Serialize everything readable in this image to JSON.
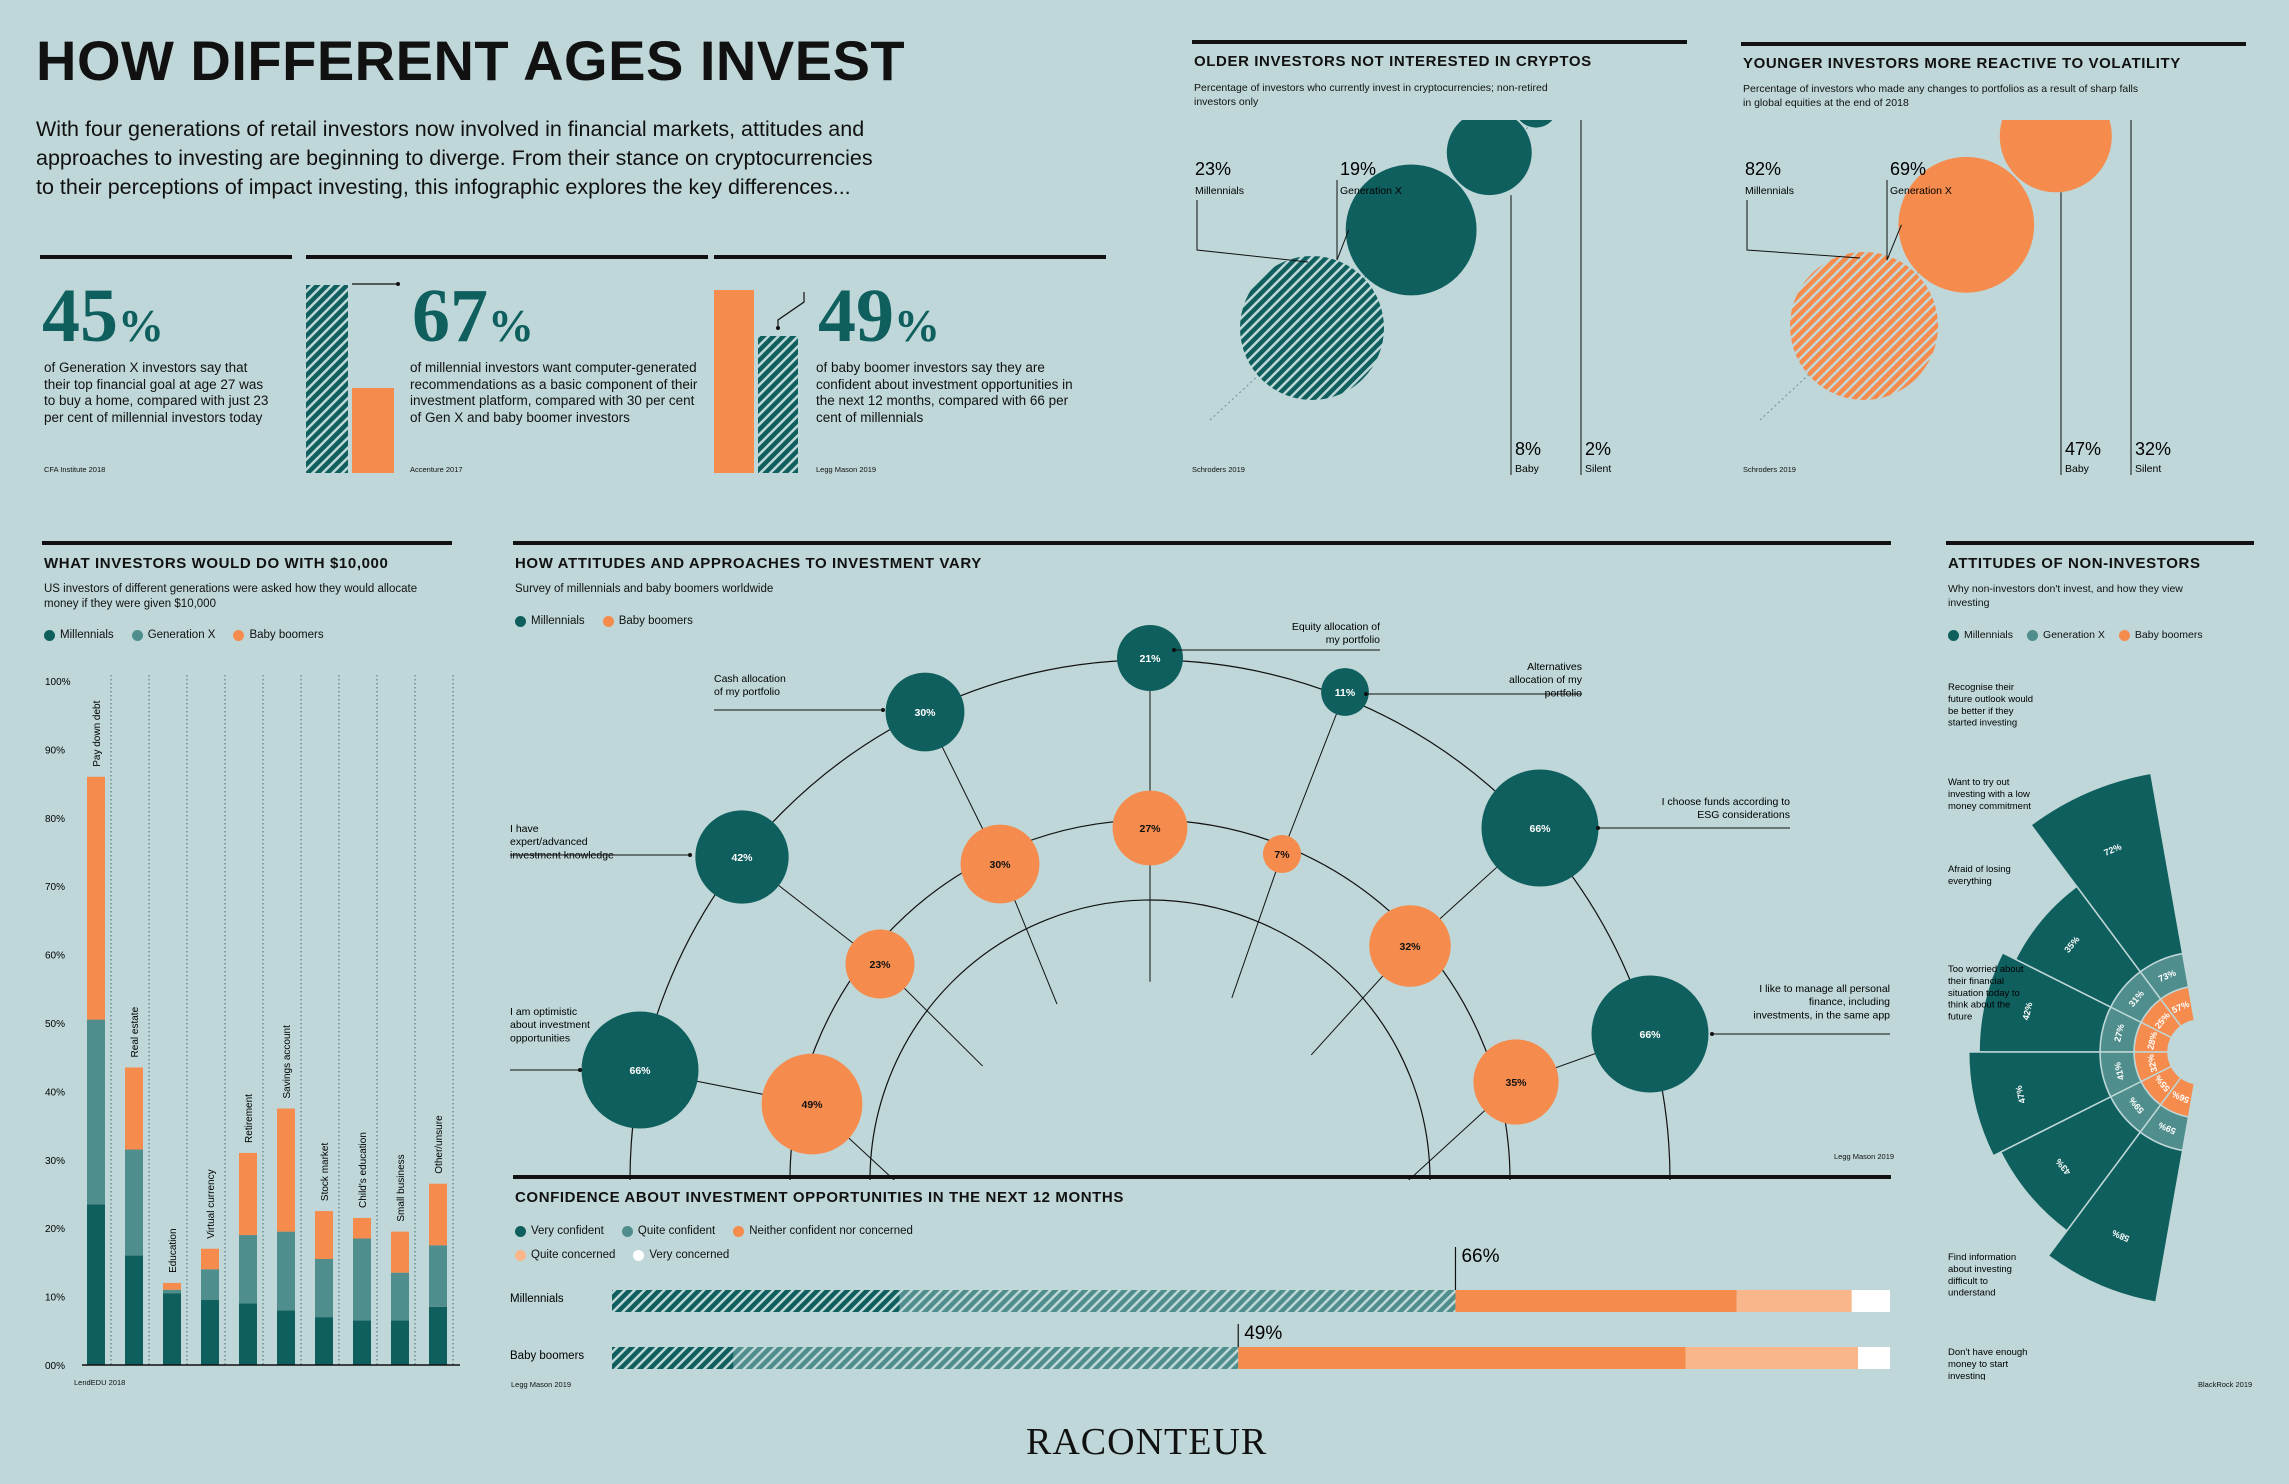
{
  "colors": {
    "dark": "#0f5f5e",
    "mid": "#4f8e8c",
    "orange": "#f58b4c",
    "light_orange": "#f9b68a",
    "white": "#ffffff",
    "bg": "#bfd7d8"
  },
  "header": {
    "title": "HOW DIFFERENT AGES INVEST",
    "intro": "With four generations of retail investors now involved in financial markets, attitudes and approaches to investing are beginning to diverge. From their stance on cryptocurrencies to their perceptions of impact investing, this infographic explores the key differences..."
  },
  "stats": [
    {
      "value": "45",
      "pct": "%",
      "text": "of Generation X investors say that their top financial goal at age 27 was to buy a home, compared with just 23 per cent of millennial investors today",
      "source": "CFA Institute 2018"
    },
    {
      "value": "67",
      "pct": "%",
      "text": "of millennial investors want computer-generated recommendations as a basic component of their investment platform, compared with 30 per cent of Gen X and baby boomer investors",
      "source": "Accenture 2017"
    },
    {
      "value": "49",
      "pct": "%",
      "text": "of baby boomer investors say they are confident about investment opportunities in the next 12 months, compared with 66 per cent of millennials",
      "source": "Legg Mason 2019"
    }
  ],
  "crypto": {
    "title": "OLDER INVESTORS NOT INTERESTED IN CRYPTOS",
    "subtitle": "Percentage of investors who currently invest in cryptocurrencies; non-retired investors only",
    "source": "Schroders 2019",
    "chart_data": {
      "type": "bubble",
      "categories": [
        "Millennials",
        "Generation X",
        "Baby boomers",
        "Silent generation"
      ],
      "values": [
        23,
        19,
        8,
        2
      ],
      "labels": [
        "23%",
        "19%",
        "8%",
        "2%"
      ]
    }
  },
  "volatility": {
    "title": "YOUNGER INVESTORS MORE REACTIVE TO VOLATILITY",
    "subtitle": "Percentage of investors who made any changes to portfolios as a result of sharp falls in global equities at the end of 2018",
    "source": "Schroders 2019",
    "chart_data": {
      "type": "bubble",
      "categories": [
        "Millennials",
        "Generation X",
        "Baby boomers",
        "Silent generation"
      ],
      "values": [
        82,
        69,
        47,
        32
      ],
      "labels": [
        "82%",
        "69%",
        "47%",
        "32%"
      ]
    }
  },
  "tenk": {
    "title": "WHAT INVESTORS WOULD DO WITH $10,000",
    "subtitle": "US investors of different generations were asked how they would allocate money if they were given $10,000",
    "legend": [
      "Millennials",
      "Generation X",
      "Baby boomers"
    ],
    "source": "LendEDU 2018",
    "yticks": [
      "100%",
      "90%",
      "80%",
      "70%",
      "60%",
      "50%",
      "40%",
      "30%",
      "20%",
      "10%",
      "00%"
    ],
    "chart_data": {
      "type": "bar",
      "stacked": true,
      "categories": [
        "Pay down debt",
        "Real estate",
        "Education",
        "Virtual currency",
        "Retirement",
        "Savings account",
        "Stock market",
        "Child's education",
        "Small business",
        "Other/unsure"
      ],
      "series": [
        {
          "name": "Millennials",
          "values": [
            23.5,
            16,
            10.5,
            9.5,
            9,
            8,
            7,
            6.5,
            6.5,
            8.5
          ]
        },
        {
          "name": "Generation X",
          "values": [
            27,
            15.5,
            0.5,
            4.5,
            10,
            11.5,
            8.5,
            12,
            7,
            9
          ]
        },
        {
          "name": "Baby boomers",
          "values": [
            35.5,
            12,
            1,
            3,
            12,
            18,
            7,
            3,
            6,
            9
          ]
        }
      ],
      "ylim": [
        0,
        100
      ]
    }
  },
  "attitudes": {
    "title": "HOW ATTITUDES AND APPROACHES TO INVESTMENT VARY",
    "subtitle": "Survey of millennials and baby boomers worldwide",
    "legend": [
      "Millennials",
      "Baby boomers"
    ],
    "source": "Legg Mason 2019",
    "chart_data": {
      "type": "bubble",
      "categories": [
        "I am optimistic about investment opportunities",
        "I have expert/advanced investment knowledge",
        "Cash allocation of my portfolio",
        "Equity allocation of my portfolio",
        "Alternatives allocation of my portfolio",
        "I choose funds according to ESG considerations",
        "I like to manage all personal finance, including investments, in the same app"
      ],
      "series": [
        {
          "name": "Millennials",
          "values": [
            66,
            42,
            30,
            21,
            11,
            66,
            66
          ],
          "labels": [
            "66%",
            "42%",
            "30%",
            "21%",
            "11%",
            "66%",
            "66%"
          ]
        },
        {
          "name": "Baby boomers",
          "values": [
            49,
            23,
            30,
            27,
            7,
            32,
            35
          ],
          "labels": [
            "49%",
            "23%",
            "30%",
            "27%",
            "7%",
            "32%",
            "35%"
          ]
        }
      ]
    }
  },
  "confidence": {
    "title": "CONFIDENCE ABOUT INVESTMENT OPPORTUNITIES IN THE NEXT 12 MONTHS",
    "legend": [
      "Very confident",
      "Quite confident",
      "Neither confident nor concerned",
      "Quite concerned",
      "Very concerned"
    ],
    "source": "Legg Mason 2019",
    "chart_data": {
      "type": "bar",
      "stacked": true,
      "orientation": "horizontal",
      "categories": [
        "Millennials",
        "Baby boomers"
      ],
      "series": [
        {
          "name": "Very confident",
          "values": [
            22.5,
            9.5
          ]
        },
        {
          "name": "Quite confident",
          "values": [
            43.5,
            39.5
          ]
        },
        {
          "name": "Neither confident nor concerned",
          "values": [
            22,
            35
          ]
        },
        {
          "name": "Quite concerned",
          "values": [
            9,
            13.5
          ]
        },
        {
          "name": "Very concerned",
          "values": [
            3,
            2.5
          ]
        }
      ],
      "callouts": [
        "66%",
        "49%"
      ]
    }
  },
  "noninv": {
    "title": "ATTITUDES OF NON-INVESTORS",
    "subtitle": "Why non-investors don't invest, and how they view investing",
    "legend": [
      "Millennials",
      "Generation X",
      "Baby boomers"
    ],
    "source": "BlackRock 2019",
    "chart_data": {
      "type": "radial-bar",
      "categories": [
        "Recognise their future outlook would be better if they started investing",
        "Want to try out investing with a low money commitment",
        "Afraid of losing everything",
        "Too worried about their financial situation today to think about the future",
        "Find information about investing difficult to understand",
        "Don't have enough money to start investing"
      ],
      "series": [
        {
          "name": "Millennials",
          "values": [
            72,
            35,
            42,
            47,
            43,
            58
          ],
          "labels": [
            "72%",
            "35%",
            "42%",
            "47%",
            "43%",
            "58%"
          ]
        },
        {
          "name": "Generation X",
          "values": [
            73,
            31,
            27,
            41,
            59,
            59
          ],
          "labels": [
            "73%",
            "31%",
            "27%",
            "41%",
            "59%",
            "59%"
          ]
        },
        {
          "name": "Baby boomers",
          "values": [
            57,
            25,
            28,
            32,
            55,
            56
          ],
          "labels": [
            "57%",
            "25%",
            "28%",
            "32%",
            "55%",
            "56%"
          ]
        }
      ]
    }
  },
  "footer": {
    "brand": "RACONTEUR"
  }
}
